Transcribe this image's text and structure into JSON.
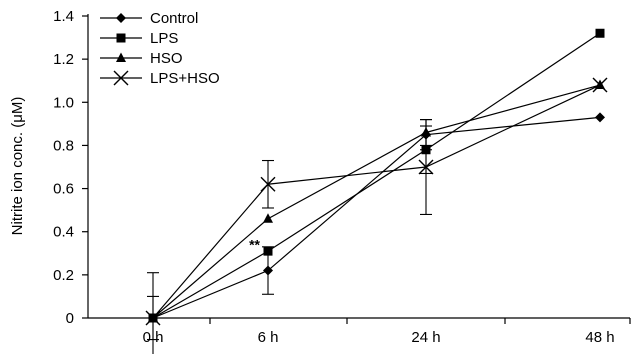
{
  "chart_data": {
    "type": "line",
    "categories": [
      "0 h",
      "6 h",
      "24 h",
      "48 h"
    ],
    "ylabel": "Nitrite ion conc. (μM)",
    "xlabel": "",
    "ylim": [
      0,
      1.4
    ],
    "yticks": [
      "0",
      "0.2",
      "0.4",
      "0.6",
      "0.8",
      "1.0",
      "1.2",
      "1.4"
    ],
    "grid": false,
    "legend_position": "top-left",
    "series": [
      {
        "name": "Control",
        "marker": "diamond",
        "values": [
          0,
          0.22,
          0.85,
          0.93
        ],
        "errors": [
          0.1,
          0.11,
          0.07,
          0
        ]
      },
      {
        "name": "LPS",
        "marker": "square",
        "values": [
          0,
          0.31,
          0.78,
          1.32
        ],
        "errors": [
          0,
          0,
          0.11,
          0
        ]
      },
      {
        "name": "HSO",
        "marker": "triangle",
        "values": [
          0,
          0.46,
          0.86,
          1.08
        ],
        "errors": [
          0,
          0,
          0.06,
          0
        ]
      },
      {
        "name": "LPS+HSO",
        "marker": "x",
        "values": [
          0,
          0.62,
          0.7,
          1.08
        ],
        "errors": [
          0.21,
          0.11,
          0.22,
          0
        ]
      }
    ],
    "annotations": [
      {
        "text": "**",
        "category": "6 h",
        "y": 0.36
      }
    ]
  }
}
